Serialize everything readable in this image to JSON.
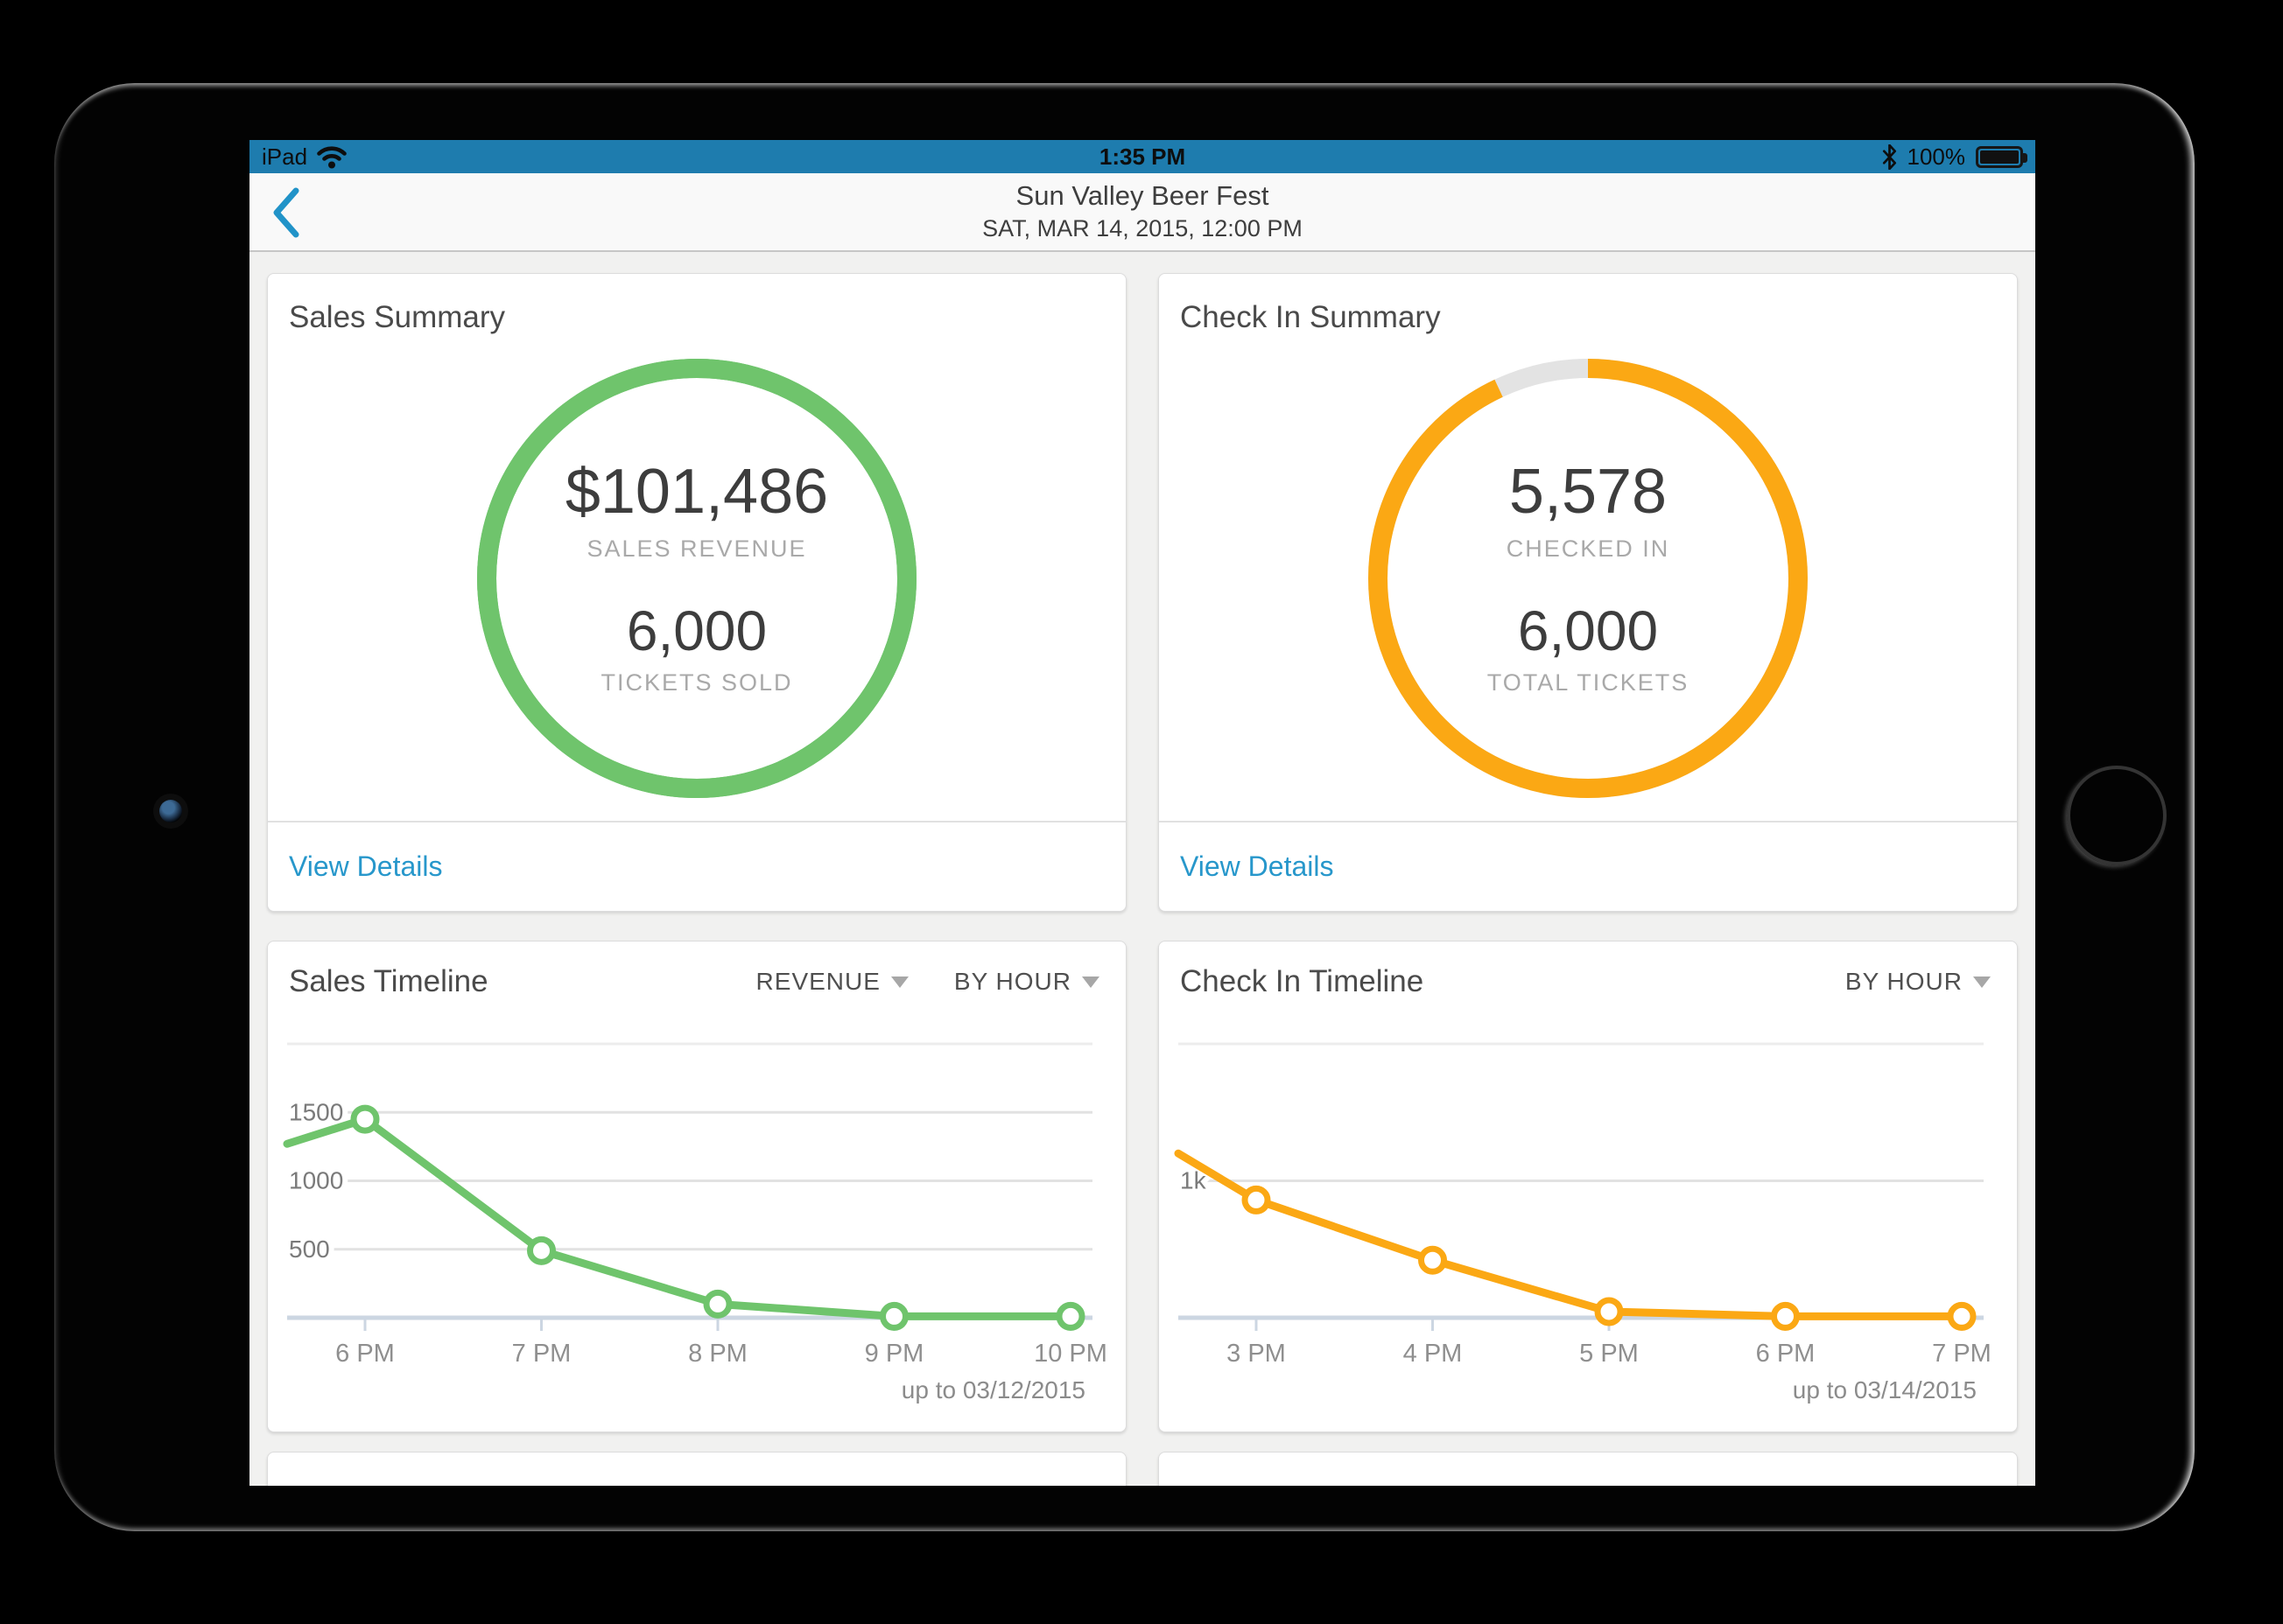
{
  "status_bar": {
    "carrier": "iPad",
    "time": "1:35 PM",
    "battery_percent": "100%",
    "bar_color": "#1e7cae"
  },
  "header": {
    "title": "Sun Valley Beer Fest",
    "subtitle": "SAT, MAR 14, 2015, 12:00 PM",
    "back_icon": "chevron-left",
    "accent_color": "#2193c8"
  },
  "sales_summary": {
    "title": "Sales Summary",
    "primary_value": "$101,486",
    "primary_label": "SALES REVENUE",
    "secondary_value": "6,000",
    "secondary_label": "TICKETS SOLD",
    "link_label": "View Details",
    "ring": {
      "color": "#6fc46c",
      "track_color": "#6fc46c",
      "percent": 100
    }
  },
  "checkin_summary": {
    "title": "Check In Summary",
    "primary_value": "5,578",
    "primary_label": "CHECKED IN",
    "secondary_value": "6,000",
    "secondary_label": "TOTAL TICKETS",
    "link_label": "View Details",
    "ring": {
      "color": "#fba814",
      "track_color": "#e3e3e3",
      "percent": 93
    }
  },
  "sales_timeline": {
    "title": "Sales Timeline",
    "filters": [
      {
        "label": "REVENUE"
      },
      {
        "label": "BY HOUR"
      }
    ]
  },
  "checkin_timeline": {
    "title": "Check In Timeline",
    "filters": [
      {
        "label": "BY HOUR"
      }
    ]
  },
  "chart_data": [
    {
      "type": "line",
      "title": "Sales Timeline",
      "categories": [
        "6 PM",
        "7 PM",
        "8 PM",
        "9 PM",
        "10 PM"
      ],
      "series": [
        {
          "name": "Revenue by hour",
          "color": "#6fc46c",
          "lead_in_value": 1270,
          "values": [
            1450,
            490,
            100,
            10,
            10
          ]
        }
      ],
      "y_ticks": [
        {
          "value": 1500,
          "label": "1500"
        },
        {
          "value": 1000,
          "label": "1000"
        },
        {
          "value": 500,
          "label": "500"
        }
      ],
      "ylim": [
        0,
        2000
      ],
      "grid": true,
      "legend": "none",
      "footer": "up to 03/12/2015"
    },
    {
      "type": "line",
      "title": "Check In Timeline",
      "categories": [
        "3 PM",
        "4 PM",
        "5 PM",
        "6 PM",
        "7 PM"
      ],
      "series": [
        {
          "name": "Check-ins by hour",
          "color": "#fba814",
          "lead_in_value": 1200,
          "values": [
            860,
            420,
            45,
            10,
            10
          ]
        }
      ],
      "y_ticks": [
        {
          "value": 1000,
          "label": "1k"
        }
      ],
      "ylim": [
        0,
        2000
      ],
      "grid": true,
      "legend": "none",
      "footer": "up to 03/14/2015"
    },
    {
      "type": "donut",
      "title": "Sales Summary",
      "display_value": "$101,486",
      "label": "SALES REVENUE",
      "tickets_sold": 6000,
      "percent": 100,
      "color": "#6fc46c"
    },
    {
      "type": "donut",
      "title": "Check In Summary",
      "checked_in": 5578,
      "total_tickets": 6000,
      "percent": 93,
      "color": "#fba814",
      "remainder_color": "#e3e3e3"
    }
  ]
}
